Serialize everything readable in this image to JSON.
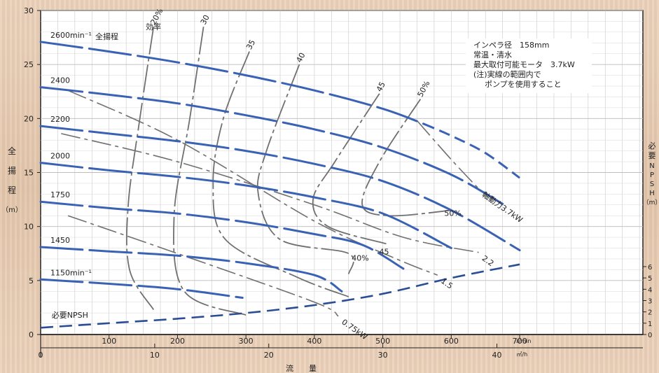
{
  "chart_data": {
    "type": "line",
    "ylabel_left": [
      "全",
      "揚",
      "程",
      "（m）"
    ],
    "ylabel_right": [
      "必",
      "要",
      "N",
      "P",
      "S",
      "H",
      "（m）"
    ],
    "xlabel": "流　　量",
    "left_axis": {
      "ylim": [
        0,
        30
      ],
      "ticks": [
        0,
        5,
        10,
        15,
        20,
        25,
        30
      ]
    },
    "right_axis": {
      "ylim": [
        0,
        6
      ],
      "ticks": [
        0,
        1,
        2,
        3,
        4,
        5,
        6
      ]
    },
    "x_axis_lmin": {
      "unit": "ℓ/min",
      "xlim": [
        0,
        880
      ],
      "ticks": [
        100,
        200,
        300,
        400,
        500,
        600,
        700
      ]
    },
    "x_axis_m3h": {
      "unit": "㎥/h",
      "ticks": [
        0,
        10,
        20,
        30,
        40
      ]
    },
    "notes": [
      "インペラ径　158mm",
      "常温・清水",
      "最大取付可能モータ　3.7kW",
      "(注)実線の範囲内で",
      "ポンプを使用すること"
    ],
    "head_curves": [
      {
        "label": "2600min⁻¹",
        "note": "全揚程",
        "points": [
          [
            0,
            27.1
          ],
          [
            100,
            26.2
          ],
          [
            200,
            25.2
          ],
          [
            300,
            24.0
          ],
          [
            400,
            22.6
          ],
          [
            500,
            20.9
          ],
          [
            560,
            19.5
          ],
          [
            600,
            18.4
          ],
          [
            650,
            16.8
          ],
          [
            700,
            14.5
          ]
        ],
        "solid_until": 560
      },
      {
        "label": "2400",
        "points": [
          [
            0,
            22.9
          ],
          [
            100,
            22.2
          ],
          [
            200,
            21.4
          ],
          [
            300,
            20.3
          ],
          [
            400,
            19.0
          ],
          [
            500,
            17.3
          ],
          [
            600,
            14.8
          ],
          [
            675,
            12.1
          ]
        ],
        "solid_until": 675
      },
      {
        "label": "2200",
        "points": [
          [
            0,
            19.3
          ],
          [
            100,
            18.6
          ],
          [
            200,
            17.9
          ],
          [
            300,
            17.0
          ],
          [
            400,
            15.8
          ],
          [
            500,
            14.2
          ],
          [
            600,
            11.5
          ],
          [
            700,
            7.8
          ]
        ],
        "solid_until": 700
      },
      {
        "label": "2000",
        "points": [
          [
            0,
            15.9
          ],
          [
            100,
            15.2
          ],
          [
            200,
            14.6
          ],
          [
            300,
            13.8
          ],
          [
            400,
            12.7
          ],
          [
            500,
            11.2
          ],
          [
            600,
            8.0
          ]
        ],
        "solid_until": 600
      },
      {
        "label": "1750",
        "points": [
          [
            0,
            12.3
          ],
          [
            100,
            11.7
          ],
          [
            200,
            11.2
          ],
          [
            300,
            10.4
          ],
          [
            400,
            9.3
          ],
          [
            470,
            8.3
          ],
          [
            530,
            6.1
          ]
        ],
        "solid_until": 530
      },
      {
        "label": "1450",
        "points": [
          [
            0,
            8.1
          ],
          [
            100,
            7.7
          ],
          [
            200,
            7.3
          ],
          [
            300,
            6.6
          ],
          [
            400,
            5.5
          ],
          [
            440,
            4.0
          ]
        ],
        "solid_until": 440
      },
      {
        "label": "1150min⁻¹",
        "points": [
          [
            0,
            5.1
          ],
          [
            100,
            4.7
          ],
          [
            200,
            4.2
          ],
          [
            295,
            3.4
          ]
        ],
        "solid_until": 295
      }
    ],
    "efficiency_curves": [
      {
        "label": "20%",
        "points": [
          [
            165,
            28.5
          ],
          [
            145,
            20.0
          ],
          [
            128,
            12.0
          ],
          [
            130,
            6.0
          ],
          [
            165,
            2.3
          ]
        ]
      },
      {
        "label": "30",
        "points": [
          [
            238,
            28.5
          ],
          [
            218,
            20.0
          ],
          [
            195,
            11.0
          ],
          [
            210,
            4.0
          ],
          [
            300,
            1.8
          ]
        ]
      },
      {
        "label": "35",
        "points": [
          [
            305,
            26.2
          ],
          [
            267,
            20.0
          ],
          [
            252,
            14.0
          ],
          [
            270,
            8.8
          ],
          [
            375,
            5.3
          ],
          [
            450,
            3.5
          ]
        ]
      },
      {
        "label": "40",
        "points": [
          [
            378,
            25.0
          ],
          [
            330,
            17.0
          ],
          [
            318,
            13.0
          ],
          [
            350,
            8.8
          ],
          [
            450,
            7.5
          ],
          [
            450,
            5.6
          ]
        ]
      },
      {
        "label": "45",
        "points": [
          [
            495,
            22.3
          ],
          [
            430,
            16.0
          ],
          [
            398,
            12.5
          ],
          [
            420,
            10.0
          ],
          [
            505,
            8.4
          ]
        ]
      },
      {
        "label": "50%",
        "points": [
          [
            555,
            21.8
          ],
          [
            495,
            16.0
          ],
          [
            470,
            12.0
          ],
          [
            510,
            11.0
          ],
          [
            600,
            11.5
          ]
        ]
      }
    ],
    "power_curves": [
      {
        "label": "軸動力3.7kW",
        "points": [
          [
            550,
            19.8
          ],
          [
            600,
            16.2
          ],
          [
            640,
            13.5
          ]
        ]
      },
      {
        "label": "2.2",
        "points": [
          [
            30,
            18.6
          ],
          [
            200,
            16.0
          ],
          [
            400,
            12.0
          ],
          [
            530,
            9.0
          ],
          [
            640,
            7.6
          ]
        ]
      },
      {
        "label": "1.5",
        "points": [
          [
            40,
            22.6
          ],
          [
            200,
            18.0
          ],
          [
            400,
            10.5
          ],
          [
            520,
            7.0
          ],
          [
            580,
            5.5
          ]
        ]
      },
      {
        "label": "0.75kW",
        "points": [
          [
            40,
            11.0
          ],
          [
            200,
            7.5
          ],
          [
            400,
            3.0
          ],
          [
            435,
            1.7
          ]
        ]
      }
    ],
    "npsh_curve": {
      "label": "必要NPSH",
      "points": [
        [
          0,
          0.6
        ],
        [
          100,
          1.0
        ],
        [
          200,
          1.4
        ],
        [
          300,
          1.9
        ],
        [
          400,
          2.6
        ],
        [
          500,
          3.6
        ],
        [
          600,
          5.0
        ],
        [
          700,
          6.2
        ]
      ]
    }
  }
}
